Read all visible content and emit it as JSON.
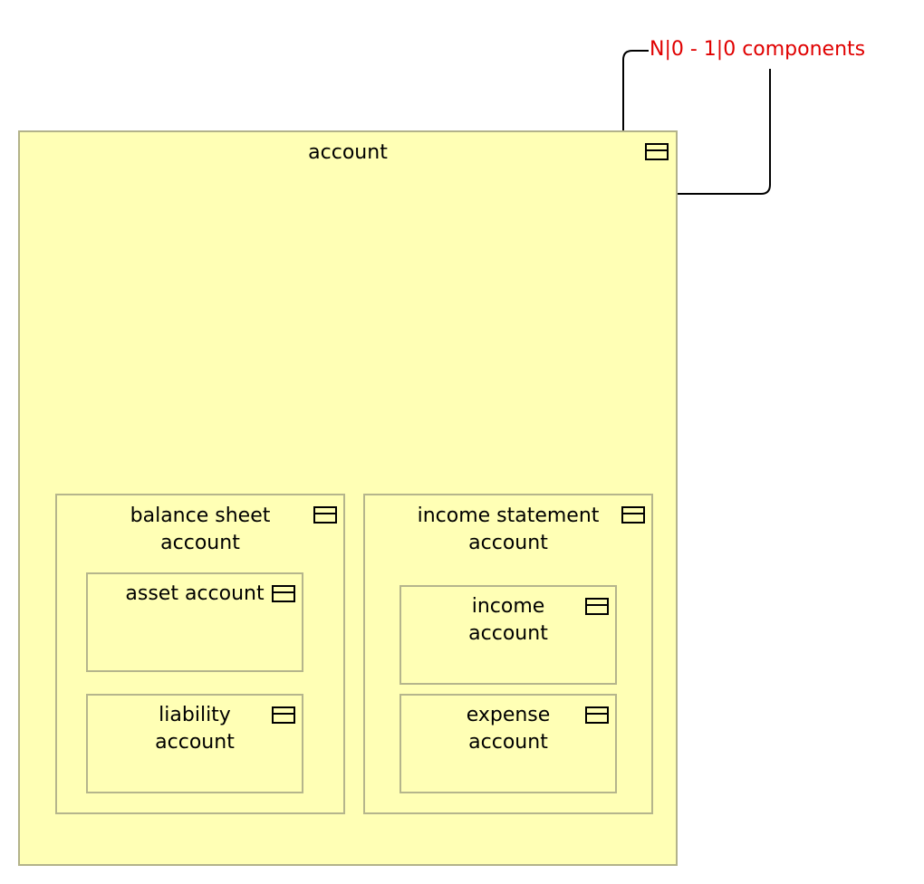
{
  "diagram": {
    "relationship_label": "N|0 - 1|0 components",
    "elements": {
      "account": {
        "label": "account",
        "icon": "class-icon"
      },
      "balance_sheet_account": {
        "label": "balance sheet\naccount",
        "icon": "class-icon"
      },
      "income_statement_account": {
        "label": "income statement\naccount",
        "icon": "class-icon"
      },
      "asset_account": {
        "label": "asset account",
        "icon": "class-icon"
      },
      "liability_account": {
        "label": "liability\naccount",
        "icon": "class-icon"
      },
      "income_account": {
        "label": "income\naccount",
        "icon": "class-icon"
      },
      "expense_account": {
        "label": "expense\naccount",
        "icon": "class-icon"
      }
    },
    "colors": {
      "element_fill": "#ffffb5",
      "element_border": "#b5b58c",
      "label_red": "#e00000",
      "line": "#000000"
    }
  }
}
